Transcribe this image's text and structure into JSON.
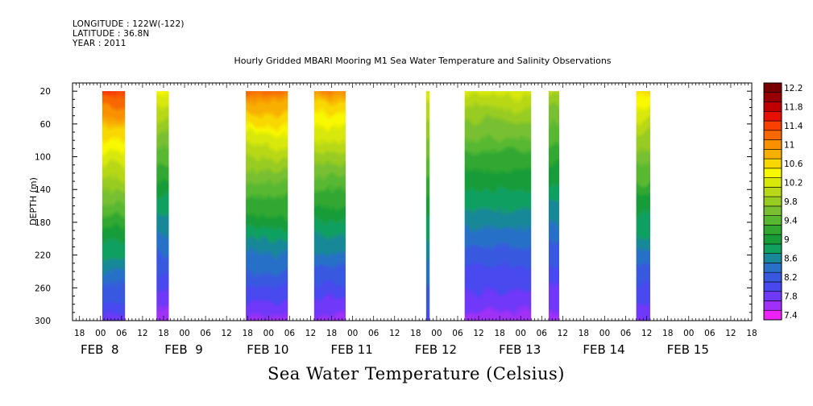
{
  "header": {
    "longitude": "LONGITUDE : 122W(-122)",
    "latitude": "LATITUDE : 36.8N",
    "year": "YEAR : 2011"
  },
  "chart_data": {
    "type": "heatmap",
    "title": "Hourly Gridded MBARI Mooring M1 Sea Water Temperature and Salinity Observations",
    "bottom_title": "Sea Water Temperature (Celsius)",
    "xlabel": "",
    "ylabel": "DEPTH (m)",
    "ylim": [
      300,
      10
    ],
    "y_ticks": [
      20,
      60,
      100,
      140,
      180,
      220,
      260,
      300
    ],
    "x_range_hours": [
      -8,
      186
    ],
    "x_hour_ticks": [
      {
        "h": -6,
        "label": "18"
      },
      {
        "h": 0,
        "label": "00"
      },
      {
        "h": 6,
        "label": "06"
      },
      {
        "h": 12,
        "label": "12"
      },
      {
        "h": 18,
        "label": "18"
      },
      {
        "h": 24,
        "label": "00"
      },
      {
        "h": 30,
        "label": "06"
      },
      {
        "h": 36,
        "label": "12"
      },
      {
        "h": 42,
        "label": "18"
      },
      {
        "h": 48,
        "label": "00"
      },
      {
        "h": 54,
        "label": "06"
      },
      {
        "h": 60,
        "label": "12"
      },
      {
        "h": 66,
        "label": "18"
      },
      {
        "h": 72,
        "label": "00"
      },
      {
        "h": 78,
        "label": "06"
      },
      {
        "h": 84,
        "label": "12"
      },
      {
        "h": 90,
        "label": "18"
      },
      {
        "h": 96,
        "label": "00"
      },
      {
        "h": 102,
        "label": "06"
      },
      {
        "h": 108,
        "label": "12"
      },
      {
        "h": 114,
        "label": "18"
      },
      {
        "h": 120,
        "label": "00"
      },
      {
        "h": 126,
        "label": "06"
      },
      {
        "h": 132,
        "label": "12"
      },
      {
        "h": 138,
        "label": "18"
      },
      {
        "h": 144,
        "label": "00"
      },
      {
        "h": 150,
        "label": "06"
      },
      {
        "h": 156,
        "label": "12"
      },
      {
        "h": 162,
        "label": "18"
      },
      {
        "h": 168,
        "label": "00"
      },
      {
        "h": 174,
        "label": "06"
      },
      {
        "h": 180,
        "label": "12"
      },
      {
        "h": 186,
        "label": "18"
      }
    ],
    "x_day_labels": [
      {
        "h": 0,
        "label": "FEB  8"
      },
      {
        "h": 24,
        "label": "FEB  9"
      },
      {
        "h": 48,
        "label": "FEB 10"
      },
      {
        "h": 72,
        "label": "FEB 11"
      },
      {
        "h": 96,
        "label": "FEB 12"
      },
      {
        "h": 120,
        "label": "FEB 13"
      },
      {
        "h": 144,
        "label": "FEB 14"
      },
      {
        "h": 168,
        "label": "FEB 15"
      }
    ],
    "colorbar": {
      "min": 7.4,
      "max": 12.4,
      "step": 0.2,
      "labels": [
        "12.2",
        "11.8",
        "11.4",
        "11",
        "10.6",
        "10.2",
        "9.8",
        "9.4",
        "9",
        "8.6",
        "8.2",
        "7.8",
        "7.4"
      ],
      "colors": [
        "#ec22f8",
        "#a030f8",
        "#7038f8",
        "#4848f0",
        "#3858e0",
        "#2870c8",
        "#188898",
        "#10a060",
        "#189c38",
        "#30a830",
        "#58b830",
        "#78c030",
        "#98cc20",
        "#b8d818",
        "#d8e808",
        "#f8f800",
        "#f8d800",
        "#f8b000",
        "#f89000",
        "#f86800",
        "#f84000",
        "#e81000",
        "#c00000",
        "#980000",
        "#780000"
      ]
    },
    "segments": [
      {
        "start_h": 0.5,
        "end_h": 7,
        "top_temp": 11.9,
        "bottom_temp": 7.8
      },
      {
        "start_h": 16,
        "end_h": 19.5,
        "top_temp": 10.7,
        "bottom_temp": 7.6
      },
      {
        "start_h": 41.5,
        "end_h": 53.5,
        "top_temp": 11.6,
        "bottom_temp": 7.6
      },
      {
        "start_h": 61,
        "end_h": 70,
        "top_temp": 11.4,
        "bottom_temp": 7.6
      },
      {
        "start_h": 93,
        "end_h": 94,
        "top_temp": 10.6,
        "bottom_temp": 8.0
      },
      {
        "start_h": 104,
        "end_h": 123,
        "top_temp": 10.5,
        "bottom_temp": 7.6
      },
      {
        "start_h": 128,
        "end_h": 131,
        "top_temp": 10.3,
        "bottom_temp": 7.6
      },
      {
        "start_h": 153,
        "end_h": 157,
        "top_temp": 11.0,
        "bottom_temp": 7.7
      }
    ]
  }
}
